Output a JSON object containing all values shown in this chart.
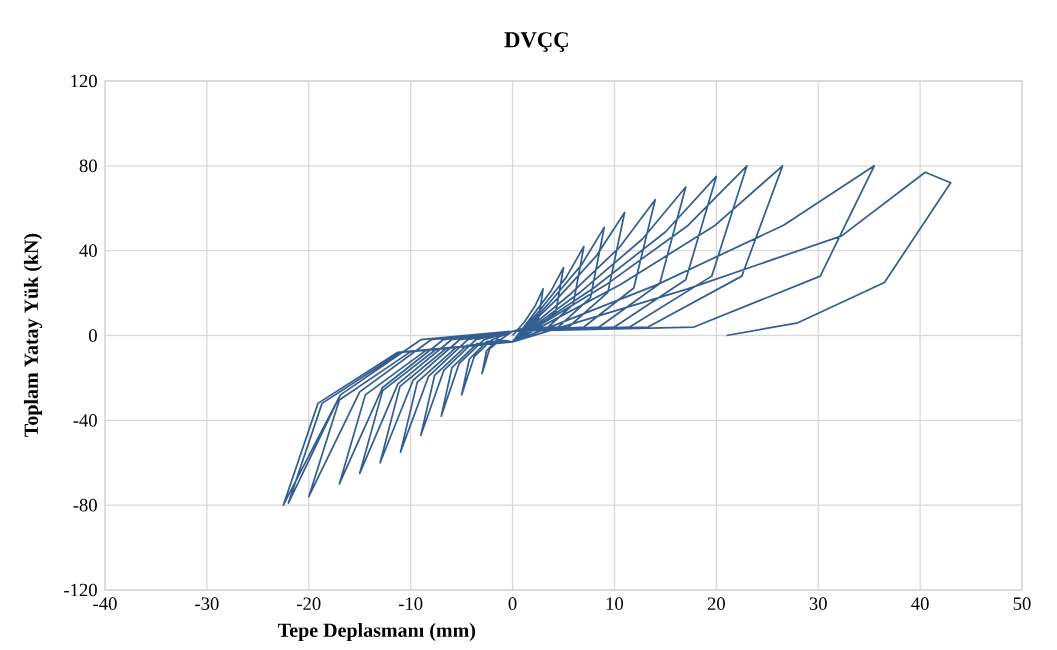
{
  "chart_data": {
    "type": "line",
    "title": "DVÇÇ",
    "xlabel": "Tepe Deplasmanı (mm)",
    "ylabel": "Toplam Yatay Yük (kN)",
    "xlim": [
      -40,
      50
    ],
    "xticks": [
      -40,
      -30,
      -20,
      -10,
      0,
      10,
      20,
      30,
      40,
      50
    ],
    "ylim": [
      -120,
      120
    ],
    "yticks": [
      -120,
      -80,
      -40,
      0,
      40,
      80,
      120
    ],
    "grid": true,
    "color": "#335e91",
    "x": [
      0,
      1.2,
      2.25,
      3,
      2.55,
      1.5,
      0,
      -1.2,
      -2.25,
      -3,
      -2.55,
      -1.5,
      0,
      2,
      3.75,
      5,
      4.25,
      2.5,
      0,
      -2,
      -3.75,
      -5,
      -4.25,
      -2.5,
      0,
      2.8,
      5.25,
      7,
      5.95,
      3.5,
      0,
      -2.8,
      -5.25,
      -7,
      -5.95,
      -3.5,
      0,
      3.6,
      6.75,
      9,
      7.65,
      4.5,
      0,
      -3.6,
      -6.75,
      -9,
      -7.65,
      -4.5,
      0,
      4.4,
      8.25,
      11,
      9.35,
      5.5,
      0,
      -4.4,
      -8.25,
      -11,
      -9.35,
      -5.5,
      0,
      5.6,
      10.5,
      14,
      11.9,
      7,
      0,
      -5.2,
      -9.75,
      -13,
      -11.05,
      -6.5,
      0,
      6.8,
      12.75,
      17,
      14.45,
      8.5,
      0,
      -6,
      -11.25,
      -15,
      -12.75,
      -7.5,
      0,
      8,
      15,
      20,
      17,
      10,
      0,
      -6.8,
      -12.75,
      -17,
      -14.45,
      -8.5,
      0,
      9.2,
      17.25,
      23,
      19.55,
      11.5,
      0,
      -8,
      -15,
      -20,
      -17,
      -10,
      0,
      10.6,
      19.9,
      26.5,
      22.5,
      13.3,
      0,
      -9,
      -16.9,
      -22.5,
      -19.1,
      -11.3,
      0,
      14.2,
      26.6,
      35.5,
      30.2,
      17.8,
      0,
      -9,
      -16.9,
      -22,
      -18.7,
      -11,
      0,
      17.2,
      32.3,
      40.5,
      43,
      36.5,
      28,
      21
    ],
    "values": [
      0,
      6.6,
      14.3,
      22,
      7.7,
      4,
      2,
      -2,
      -6.3,
      -18,
      -7.2,
      -1.8,
      -3,
      9.6,
      20.8,
      32,
      11.2,
      4,
      2,
      -2,
      -9.8,
      -28,
      -11.2,
      -2.8,
      -3,
      12.6,
      27.3,
      42,
      14.7,
      4,
      2,
      -2,
      -13.3,
      -38,
      -15.2,
      -3.8,
      -3,
      15.3,
      33.2,
      51,
      17.9,
      4,
      2,
      -2,
      -16.5,
      -47,
      -18.8,
      -4.7,
      -3,
      17.4,
      37.7,
      58,
      20.3,
      4,
      2,
      -2,
      -19.3,
      -55,
      -22,
      -5.5,
      -3,
      19.2,
      41.6,
      64,
      22.4,
      4,
      2,
      -2,
      -21,
      -60,
      -24,
      -6,
      -3,
      21,
      45.5,
      70,
      24.5,
      4,
      2,
      -2,
      -22.8,
      -65,
      -26,
      -6.5,
      -3,
      22.5,
      48.8,
      75,
      26.3,
      4,
      2,
      -2,
      -24.5,
      -70,
      -28,
      -7,
      -3,
      24,
      52,
      80,
      28,
      4,
      2,
      -2,
      -26.6,
      -76,
      -30.4,
      -7.6,
      -3,
      24,
      52,
      80,
      28,
      4,
      2,
      -2,
      -28,
      -80,
      -32,
      -8,
      -3,
      24,
      52,
      80,
      28,
      4,
      2,
      -2,
      -28,
      -79,
      -32,
      -8,
      -3,
      22,
      47,
      77,
      72,
      25,
      6,
      0
    ]
  }
}
